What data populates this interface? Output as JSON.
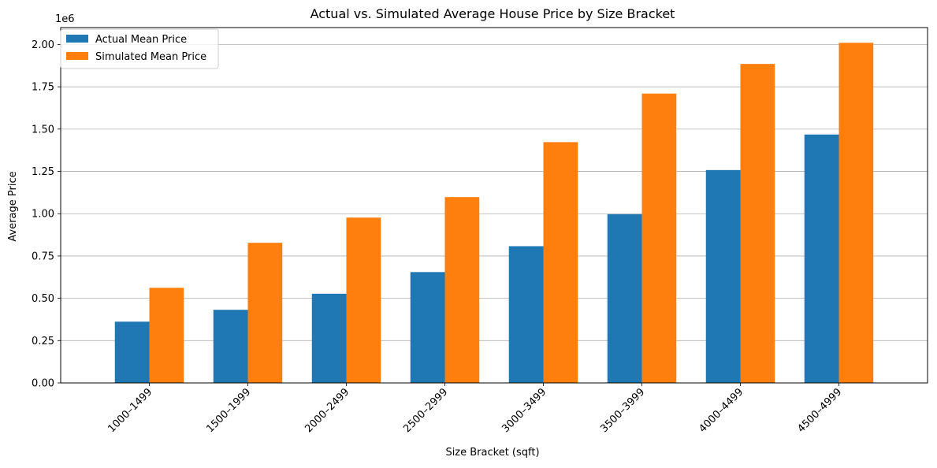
{
  "chart_data": {
    "type": "bar",
    "title": "Actual vs. Simulated Average House Price by Size Bracket",
    "xlabel": "Size Bracket (sqft)",
    "ylabel": "Average Price",
    "y_offset_label": "1e6",
    "categories": [
      "1000–1499",
      "1500–1999",
      "2000–2499",
      "2500–2999",
      "3000–3499",
      "3500–3999",
      "4000–4499",
      "4500–4999"
    ],
    "series": [
      {
        "name": "Actual Mean Price",
        "color": "#1f77b4",
        "values": [
          0.362,
          0.432,
          0.527,
          0.655,
          0.808,
          0.997,
          1.258,
          1.468
        ]
      },
      {
        "name": "Simulated Mean Price",
        "color": "#ff7f0e",
        "values": [
          0.562,
          0.828,
          0.977,
          1.098,
          1.423,
          1.71,
          1.885,
          2.01
        ]
      }
    ],
    "ylim": [
      0,
      2.1
    ],
    "yticks": [
      "0.00",
      "0.25",
      "0.50",
      "0.75",
      "1.00",
      "1.25",
      "1.50",
      "1.75",
      "2.00"
    ],
    "grid": "y-axis only",
    "legend_position": "upper left",
    "x_tick_rotation": "45 degrees"
  }
}
